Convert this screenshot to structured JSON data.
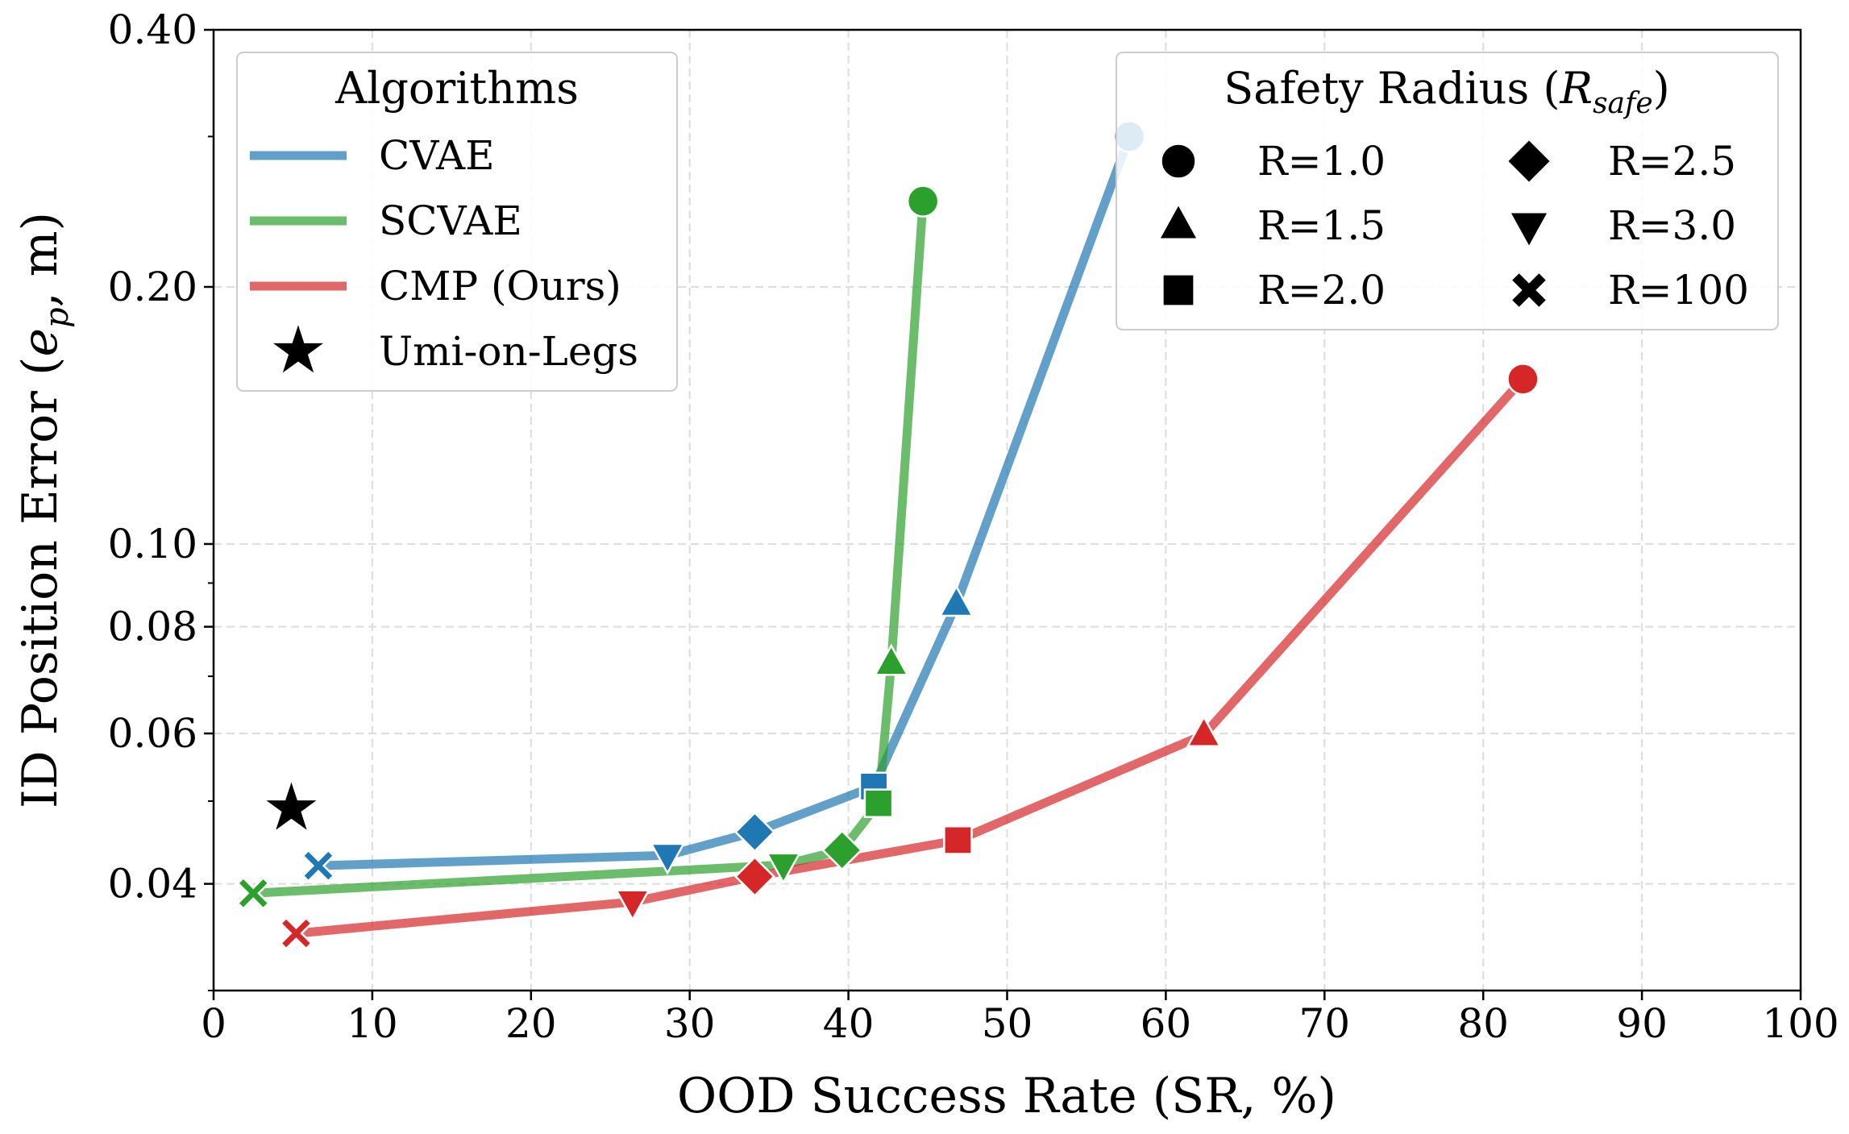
{
  "chart_data": {
    "type": "line",
    "xlabel": "OOD Success Rate (SR, %)",
    "ylabel": {
      "prefix": "ID Position Error (",
      "symbol": "e",
      "subscript": "p",
      "suffix": ", m)"
    },
    "xlim": [
      0,
      100
    ],
    "ylim": [
      0.03,
      0.4
    ],
    "yscale": "log",
    "grid": true,
    "xticks": [
      0,
      10,
      20,
      30,
      40,
      50,
      60,
      70,
      80,
      90,
      100
    ],
    "yticks": [
      0.04,
      0.06,
      0.08,
      0.1,
      0.2,
      0.4
    ],
    "ytick_labels": [
      "0.04",
      "0.06",
      "0.08",
      "0.10",
      "0.20",
      "0.40"
    ],
    "legends": [
      {
        "title": "Algorithms",
        "placement": "top-left",
        "entries": [
          "CVAE",
          "SCVAE",
          "CMP (Ours)",
          "Umi-on-Legs"
        ]
      },
      {
        "title": {
          "prefix": "Safety Radius (",
          "symbol": "R",
          "subscript": "safe",
          "suffix": ")"
        },
        "placement": "top-right",
        "entries": [
          "R=1.0",
          "R=1.5",
          "R=2.0",
          "R=2.5",
          "R=3.0",
          "R=100"
        ]
      }
    ],
    "radius_markers": {
      "R=1.0": "circle",
      "R=1.5": "triangle-up",
      "R=2.0": "square",
      "R=2.5": "diamond",
      "R=3.0": "triangle-down",
      "R=100": "x"
    },
    "series": [
      {
        "name": "CVAE",
        "color": "#1f77b4",
        "points": [
          {
            "r": "R=100",
            "x": 6.6,
            "y": 0.042
          },
          {
            "r": "R=3.0",
            "x": 28.6,
            "y": 0.0432
          },
          {
            "r": "R=2.5",
            "x": 34.1,
            "y": 0.046
          },
          {
            "r": "R=2.0",
            "x": 41.6,
            "y": 0.052
          },
          {
            "r": "R=1.5",
            "x": 46.8,
            "y": 0.085
          },
          {
            "r": "R=1.0",
            "x": 57.7,
            "y": 0.3
          }
        ]
      },
      {
        "name": "SCVAE",
        "color": "#2ca02c",
        "points": [
          {
            "r": "R=100",
            "x": 2.5,
            "y": 0.039
          },
          {
            "r": "R=3.0",
            "x": 35.9,
            "y": 0.0421
          },
          {
            "r": "R=2.5",
            "x": 39.6,
            "y": 0.0438
          },
          {
            "r": "R=2.0",
            "x": 41.9,
            "y": 0.0497
          },
          {
            "r": "R=1.5",
            "x": 42.7,
            "y": 0.0725
          },
          {
            "r": "R=1.0",
            "x": 44.7,
            "y": 0.252
          }
        ]
      },
      {
        "name": "CMP (Ours)",
        "color": "#d62728",
        "points": [
          {
            "r": "R=100",
            "x": 5.2,
            "y": 0.035
          },
          {
            "r": "R=3.0",
            "x": 26.4,
            "y": 0.0381
          },
          {
            "r": "R=2.5",
            "x": 34.1,
            "y": 0.0408
          },
          {
            "r": "R=2.0",
            "x": 46.9,
            "y": 0.045
          },
          {
            "r": "R=1.5",
            "x": 62.4,
            "y": 0.0598
          },
          {
            "r": "R=1.0",
            "x": 82.5,
            "y": 0.156
          }
        ]
      }
    ],
    "reference": {
      "name": "Umi-on-Legs",
      "marker": "star",
      "color": "#000000",
      "x": 4.9,
      "y": 0.049
    }
  }
}
